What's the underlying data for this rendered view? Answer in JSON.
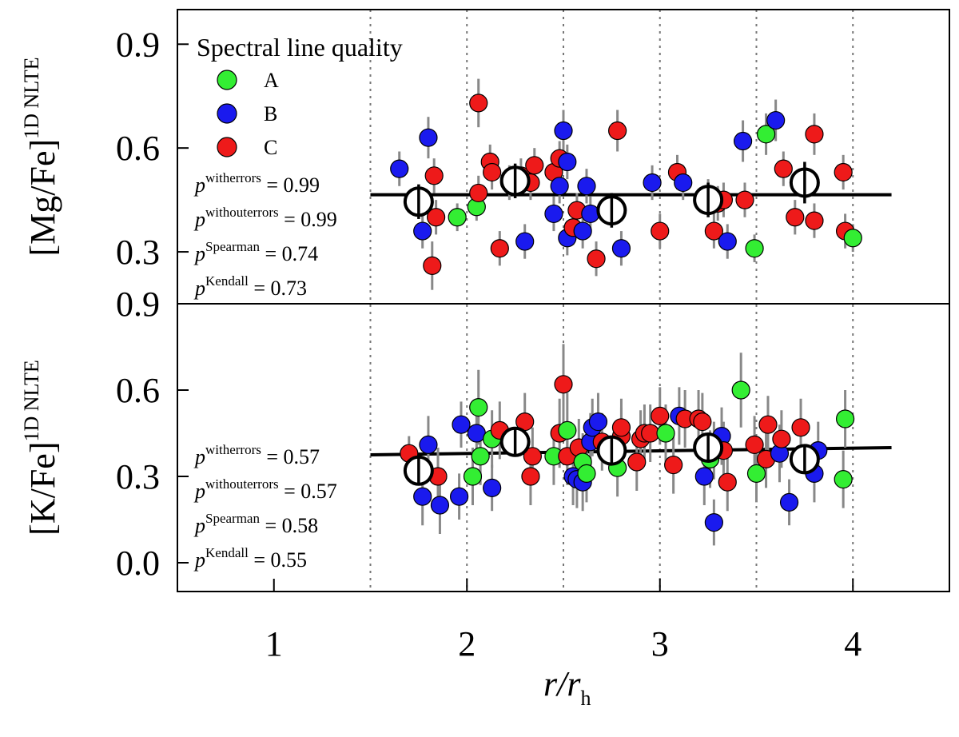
{
  "chart_data": {
    "type": "scatter",
    "xlabel": "r/r_h",
    "xlabel_main": "r/r",
    "xlabel_sub": "h",
    "xlim": [
      0.5,
      4.5
    ],
    "x_ticks": [
      "1",
      "2",
      "3",
      "4"
    ],
    "x_tick_values": [
      1,
      2,
      3,
      4
    ],
    "bin_edges": [
      1.5,
      2.0,
      2.5,
      3.0,
      3.5,
      4.0
    ],
    "colors": {
      "A": "#33ee33",
      "B": "#1a1aee",
      "C": "#ee1a1a",
      "errorbar": "#888888",
      "bin_fill": "#ffffff"
    },
    "legend": {
      "title": "Spectral line quality",
      "entries": [
        {
          "label": "A",
          "color": "#33ee33"
        },
        {
          "label": "B",
          "color": "#1a1aee"
        },
        {
          "label": "C",
          "color": "#ee1a1a"
        }
      ]
    },
    "panels": [
      {
        "id": "mg",
        "ylabel_main": "[Mg/Fe]",
        "ylabel_sup": "1D NLTE",
        "ylim": [
          0.15,
          1.0
        ],
        "y_ticks": [
          "0.3",
          "0.6",
          "0.9"
        ],
        "y_tick_values": [
          0.3,
          0.6,
          0.9
        ],
        "fit": {
          "x": [
            1.5,
            4.2
          ],
          "y": [
            0.465,
            0.465
          ]
        },
        "stats": [
          {
            "base": "p",
            "sup": "witherrors",
            "value": "= 0.99"
          },
          {
            "base": "p",
            "sup": "withouterrors",
            "value": "= 0.99"
          },
          {
            "base": "p",
            "sup": "Spearman",
            "value": "= 0.74"
          },
          {
            "base": "p",
            "sup": "Kendall",
            "value": "= 0.73"
          }
        ],
        "bins": [
          {
            "x": 1.75,
            "y": 0.445,
            "err": 0.05
          },
          {
            "x": 2.25,
            "y": 0.505,
            "err": 0.05
          },
          {
            "x": 2.75,
            "y": 0.42,
            "err": 0.05
          },
          {
            "x": 3.25,
            "y": 0.45,
            "err": 0.05
          },
          {
            "x": 3.75,
            "y": 0.5,
            "err": 0.06
          }
        ],
        "points": [
          {
            "x": 1.65,
            "y": 0.54,
            "q": "B",
            "e": 0.05
          },
          {
            "x": 1.77,
            "y": 0.36,
            "q": "B",
            "e": 0.05
          },
          {
            "x": 1.8,
            "y": 0.63,
            "q": "B",
            "e": 0.06
          },
          {
            "x": 1.82,
            "y": 0.26,
            "q": "C",
            "e": 0.07
          },
          {
            "x": 1.83,
            "y": 0.52,
            "q": "C",
            "e": 0.05
          },
          {
            "x": 1.84,
            "y": 0.4,
            "q": "C",
            "e": 0.05
          },
          {
            "x": 1.95,
            "y": 0.4,
            "q": "A",
            "e": 0.04
          },
          {
            "x": 2.05,
            "y": 0.43,
            "q": "A",
            "e": 0.04
          },
          {
            "x": 2.06,
            "y": 0.47,
            "q": "C",
            "e": 0.05
          },
          {
            "x": 2.06,
            "y": 0.73,
            "q": "C",
            "e": 0.07
          },
          {
            "x": 2.12,
            "y": 0.56,
            "q": "C",
            "e": 0.05
          },
          {
            "x": 2.13,
            "y": 0.53,
            "q": "C",
            "e": 0.05
          },
          {
            "x": 2.17,
            "y": 0.31,
            "q": "C",
            "e": 0.05
          },
          {
            "x": 2.22,
            "y": 0.5,
            "q": "C",
            "e": 0.05
          },
          {
            "x": 2.28,
            "y": 0.52,
            "q": "C",
            "e": 0.05
          },
          {
            "x": 2.3,
            "y": 0.33,
            "q": "B",
            "e": 0.05
          },
          {
            "x": 2.33,
            "y": 0.5,
            "q": "C",
            "e": 0.05
          },
          {
            "x": 2.35,
            "y": 0.55,
            "q": "C",
            "e": 0.05
          },
          {
            "x": 2.45,
            "y": 0.53,
            "q": "C",
            "e": 0.05
          },
          {
            "x": 2.45,
            "y": 0.41,
            "q": "B",
            "e": 0.05
          },
          {
            "x": 2.48,
            "y": 0.49,
            "q": "B",
            "e": 0.05
          },
          {
            "x": 2.48,
            "y": 0.57,
            "q": "C",
            "e": 0.05
          },
          {
            "x": 2.5,
            "y": 0.65,
            "q": "B",
            "e": 0.06
          },
          {
            "x": 2.52,
            "y": 0.34,
            "q": "B",
            "e": 0.05
          },
          {
            "x": 2.52,
            "y": 0.56,
            "q": "B",
            "e": 0.05
          },
          {
            "x": 2.55,
            "y": 0.37,
            "q": "C",
            "e": 0.05
          },
          {
            "x": 2.57,
            "y": 0.42,
            "q": "C",
            "e": 0.05
          },
          {
            "x": 2.6,
            "y": 0.36,
            "q": "B",
            "e": 0.05
          },
          {
            "x": 2.62,
            "y": 0.49,
            "q": "B",
            "e": 0.05
          },
          {
            "x": 2.64,
            "y": 0.41,
            "q": "B",
            "e": 0.05
          },
          {
            "x": 2.67,
            "y": 0.28,
            "q": "C",
            "e": 0.05
          },
          {
            "x": 2.78,
            "y": 0.65,
            "q": "C",
            "e": 0.06
          },
          {
            "x": 2.8,
            "y": 0.31,
            "q": "B",
            "e": 0.05
          },
          {
            "x": 2.96,
            "y": 0.5,
            "q": "B",
            "e": 0.05
          },
          {
            "x": 3.0,
            "y": 0.36,
            "q": "C",
            "e": 0.05
          },
          {
            "x": 3.09,
            "y": 0.53,
            "q": "C",
            "e": 0.05
          },
          {
            "x": 3.12,
            "y": 0.5,
            "q": "B",
            "e": 0.05
          },
          {
            "x": 3.25,
            "y": 0.46,
            "q": "C",
            "e": 0.05
          },
          {
            "x": 3.28,
            "y": 0.36,
            "q": "C",
            "e": 0.05
          },
          {
            "x": 3.3,
            "y": 0.44,
            "q": "C",
            "e": 0.05
          },
          {
            "x": 3.33,
            "y": 0.45,
            "q": "C",
            "e": 0.05
          },
          {
            "x": 3.35,
            "y": 0.33,
            "q": "B",
            "e": 0.05
          },
          {
            "x": 3.43,
            "y": 0.62,
            "q": "B",
            "e": 0.06
          },
          {
            "x": 3.44,
            "y": 0.45,
            "q": "C",
            "e": 0.05
          },
          {
            "x": 3.49,
            "y": 0.31,
            "q": "A",
            "e": 0.04
          },
          {
            "x": 3.55,
            "y": 0.64,
            "q": "A",
            "e": 0.06
          },
          {
            "x": 3.6,
            "y": 0.68,
            "q": "B",
            "e": 0.06
          },
          {
            "x": 3.64,
            "y": 0.54,
            "q": "C",
            "e": 0.05
          },
          {
            "x": 3.7,
            "y": 0.4,
            "q": "C",
            "e": 0.05
          },
          {
            "x": 3.8,
            "y": 0.64,
            "q": "C",
            "e": 0.06
          },
          {
            "x": 3.8,
            "y": 0.39,
            "q": "C",
            "e": 0.05
          },
          {
            "x": 3.95,
            "y": 0.53,
            "q": "C",
            "e": 0.05
          },
          {
            "x": 3.96,
            "y": 0.36,
            "q": "C",
            "e": 0.05
          },
          {
            "x": 4.0,
            "y": 0.34,
            "q": "A",
            "e": 0.04
          }
        ]
      },
      {
        "id": "k",
        "ylabel_main": "[K/Fe]",
        "ylabel_sup": "1D NLTE",
        "ylim": [
          -0.1,
          0.9
        ],
        "y_ticks": [
          "0.0",
          "0.3",
          "0.6",
          "0.9"
        ],
        "y_tick_values": [
          0.0,
          0.3,
          0.6,
          0.9
        ],
        "fit": {
          "x": [
            1.5,
            4.2
          ],
          "y": [
            0.375,
            0.4
          ]
        },
        "stats": [
          {
            "base": "p",
            "sup": "witherrors",
            "value": "= 0.57"
          },
          {
            "base": "p",
            "sup": "withouterrors",
            "value": "= 0.57"
          },
          {
            "base": "p",
            "sup": "Spearman",
            "value": "= 0.58"
          },
          {
            "base": "p",
            "sup": "Kendall",
            "value": "= 0.55"
          }
        ],
        "bins": [
          {
            "x": 1.75,
            "y": 0.32,
            "err": 0.05
          },
          {
            "x": 2.25,
            "y": 0.42,
            "err": 0.05
          },
          {
            "x": 2.75,
            "y": 0.39,
            "err": 0.05
          },
          {
            "x": 3.25,
            "y": 0.4,
            "err": 0.05
          },
          {
            "x": 3.75,
            "y": 0.36,
            "err": 0.05
          }
        ],
        "points": [
          {
            "x": 1.7,
            "y": 0.38,
            "q": "C",
            "e": 0.06
          },
          {
            "x": 1.77,
            "y": 0.23,
            "q": "B",
            "e": 0.1
          },
          {
            "x": 1.8,
            "y": 0.41,
            "q": "B",
            "e": 0.1
          },
          {
            "x": 1.85,
            "y": 0.3,
            "q": "C",
            "e": 0.1
          },
          {
            "x": 1.86,
            "y": 0.2,
            "q": "B",
            "e": 0.1
          },
          {
            "x": 1.96,
            "y": 0.23,
            "q": "B",
            "e": 0.08
          },
          {
            "x": 1.97,
            "y": 0.48,
            "q": "B",
            "e": 0.08
          },
          {
            "x": 2.03,
            "y": 0.3,
            "q": "A",
            "e": 0.1
          },
          {
            "x": 2.05,
            "y": 0.45,
            "q": "B",
            "e": 0.1
          },
          {
            "x": 2.06,
            "y": 0.54,
            "q": "A",
            "e": 0.13
          },
          {
            "x": 2.07,
            "y": 0.37,
            "q": "A",
            "e": 0.1
          },
          {
            "x": 2.13,
            "y": 0.26,
            "q": "B",
            "e": 0.08
          },
          {
            "x": 2.13,
            "y": 0.43,
            "q": "A",
            "e": 0.1
          },
          {
            "x": 2.17,
            "y": 0.46,
            "q": "C",
            "e": 0.1
          },
          {
            "x": 2.3,
            "y": 0.49,
            "q": "C",
            "e": 0.1
          },
          {
            "x": 2.33,
            "y": 0.3,
            "q": "C",
            "e": 0.1
          },
          {
            "x": 2.34,
            "y": 0.37,
            "q": "C",
            "e": 0.1
          },
          {
            "x": 2.45,
            "y": 0.37,
            "q": "A",
            "e": 0.1
          },
          {
            "x": 2.48,
            "y": 0.45,
            "q": "C",
            "e": 0.12
          },
          {
            "x": 2.5,
            "y": 0.62,
            "q": "C",
            "e": 0.14
          },
          {
            "x": 2.52,
            "y": 0.46,
            "q": "A",
            "e": 0.13
          },
          {
            "x": 2.52,
            "y": 0.37,
            "q": "C",
            "e": 0.1
          },
          {
            "x": 2.55,
            "y": 0.3,
            "q": "B",
            "e": 0.1
          },
          {
            "x": 2.57,
            "y": 0.29,
            "q": "B",
            "e": 0.1
          },
          {
            "x": 2.58,
            "y": 0.4,
            "q": "C",
            "e": 0.1
          },
          {
            "x": 2.6,
            "y": 0.35,
            "q": "A",
            "e": 0.1
          },
          {
            "x": 2.6,
            "y": 0.28,
            "q": "B",
            "e": 0.1
          },
          {
            "x": 2.62,
            "y": 0.31,
            "q": "A",
            "e": 0.1
          },
          {
            "x": 2.64,
            "y": 0.42,
            "q": "B",
            "e": 0.1
          },
          {
            "x": 2.65,
            "y": 0.47,
            "q": "B",
            "e": 0.1
          },
          {
            "x": 2.68,
            "y": 0.49,
            "q": "B",
            "e": 0.1
          },
          {
            "x": 2.7,
            "y": 0.42,
            "q": "C",
            "e": 0.1
          },
          {
            "x": 2.78,
            "y": 0.33,
            "q": "A",
            "e": 0.1
          },
          {
            "x": 2.8,
            "y": 0.44,
            "q": "C",
            "e": 0.1
          },
          {
            "x": 2.8,
            "y": 0.47,
            "q": "C",
            "e": 0.1
          },
          {
            "x": 2.88,
            "y": 0.35,
            "q": "C",
            "e": 0.1
          },
          {
            "x": 2.9,
            "y": 0.43,
            "q": "C",
            "e": 0.1
          },
          {
            "x": 2.92,
            "y": 0.45,
            "q": "C",
            "e": 0.1
          },
          {
            "x": 2.95,
            "y": 0.45,
            "q": "C",
            "e": 0.1
          },
          {
            "x": 3.0,
            "y": 0.51,
            "q": "C",
            "e": 0.1
          },
          {
            "x": 3.03,
            "y": 0.45,
            "q": "A",
            "e": 0.1
          },
          {
            "x": 3.07,
            "y": 0.34,
            "q": "C",
            "e": 0.1
          },
          {
            "x": 3.1,
            "y": 0.51,
            "q": "B",
            "e": 0.1
          },
          {
            "x": 3.13,
            "y": 0.5,
            "q": "C",
            "e": 0.1
          },
          {
            "x": 3.2,
            "y": 0.5,
            "q": "C",
            "e": 0.1
          },
          {
            "x": 3.22,
            "y": 0.49,
            "q": "C",
            "e": 0.1
          },
          {
            "x": 3.23,
            "y": 0.3,
            "q": "B",
            "e": 0.1
          },
          {
            "x": 3.26,
            "y": 0.36,
            "q": "A",
            "e": 0.1
          },
          {
            "x": 3.28,
            "y": 0.39,
            "q": "A",
            "e": 0.1
          },
          {
            "x": 3.28,
            "y": 0.14,
            "q": "B",
            "e": 0.08
          },
          {
            "x": 3.32,
            "y": 0.44,
            "q": "B",
            "e": 0.1
          },
          {
            "x": 3.33,
            "y": 0.39,
            "q": "C",
            "e": 0.1
          },
          {
            "x": 3.35,
            "y": 0.28,
            "q": "C",
            "e": 0.1
          },
          {
            "x": 3.42,
            "y": 0.6,
            "q": "A",
            "e": 0.13
          },
          {
            "x": 3.49,
            "y": 0.41,
            "q": "C",
            "e": 0.1
          },
          {
            "x": 3.5,
            "y": 0.31,
            "q": "A",
            "e": 0.1
          },
          {
            "x": 3.55,
            "y": 0.36,
            "q": "C",
            "e": 0.1
          },
          {
            "x": 3.56,
            "y": 0.48,
            "q": "C",
            "e": 0.1
          },
          {
            "x": 3.62,
            "y": 0.38,
            "q": "B",
            "e": 0.1
          },
          {
            "x": 3.63,
            "y": 0.43,
            "q": "C",
            "e": 0.1
          },
          {
            "x": 3.67,
            "y": 0.21,
            "q": "B",
            "e": 0.08
          },
          {
            "x": 3.73,
            "y": 0.47,
            "q": "C",
            "e": 0.1
          },
          {
            "x": 3.8,
            "y": 0.31,
            "q": "B",
            "e": 0.1
          },
          {
            "x": 3.82,
            "y": 0.39,
            "q": "B",
            "e": 0.1
          },
          {
            "x": 3.95,
            "y": 0.29,
            "q": "A",
            "e": 0.1
          },
          {
            "x": 3.96,
            "y": 0.5,
            "q": "A",
            "e": 0.1
          }
        ]
      }
    ]
  }
}
